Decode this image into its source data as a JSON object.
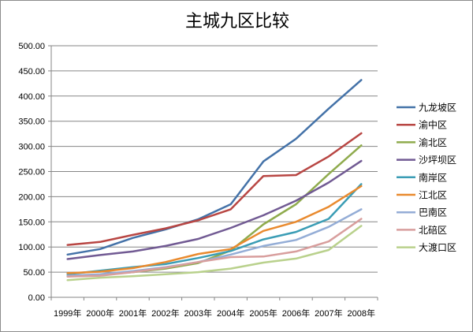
{
  "chart_data": {
    "type": "line",
    "title": "主城九区比较",
    "xlabel": "",
    "ylabel": "",
    "categories": [
      "1999年",
      "2000年",
      "2001年",
      "2002年",
      "2003年",
      "2004年",
      "2005年",
      "2006年",
      "2007年",
      "2008年"
    ],
    "ylim": [
      0,
      500
    ],
    "yticks": [
      "0.00",
      "50.00",
      "100.00",
      "150.00",
      "200.00",
      "250.00",
      "300.00",
      "350.00",
      "400.00",
      "450.00",
      "500.00"
    ],
    "grid": true,
    "legend": "right",
    "series": [
      {
        "name": "九龙坡区",
        "color": "#4472a8",
        "values": [
          85,
          96,
          118,
          135,
          155,
          185,
          270,
          315,
          375,
          432
        ]
      },
      {
        "name": "渝中区",
        "color": "#b84643",
        "values": [
          104,
          110,
          124,
          137,
          153,
          175,
          241,
          243,
          280,
          326
        ]
      },
      {
        "name": "渝北区",
        "color": "#8fab4d",
        "values": [
          42,
          45,
          50,
          57,
          68,
          93,
          145,
          185,
          245,
          302
        ]
      },
      {
        "name": "沙坪坝区",
        "color": "#715a93",
        "values": [
          76,
          84,
          91,
          102,
          116,
          138,
          163,
          192,
          228,
          271
        ]
      },
      {
        "name": "南岸区",
        "color": "#3b9db5",
        "values": [
          46,
          53,
          60,
          66,
          78,
          92,
          115,
          130,
          156,
          225
        ]
      },
      {
        "name": "江北区",
        "color": "#e98a2e",
        "values": [
          48,
          51,
          58,
          70,
          86,
          96,
          132,
          150,
          180,
          221
        ]
      },
      {
        "name": "巴南区",
        "color": "#94add6",
        "values": [
          43,
          46,
          52,
          60,
          70,
          85,
          102,
          114,
          140,
          175
        ]
      },
      {
        "name": "北碚区",
        "color": "#d89e9d",
        "values": [
          41,
          43,
          50,
          59,
          70,
          80,
          81,
          91,
          111,
          156
        ]
      },
      {
        "name": "大渡口区",
        "color": "#b9d18c",
        "values": [
          34,
          39,
          42,
          46,
          50,
          57,
          69,
          77,
          94,
          142
        ]
      }
    ]
  }
}
